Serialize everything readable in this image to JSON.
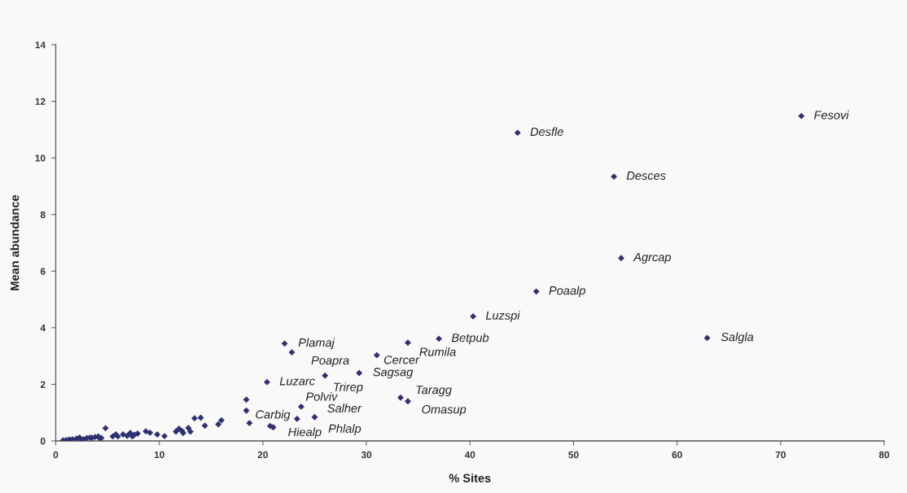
{
  "chart_data": {
    "type": "scatter",
    "xlabel": "% Sites",
    "ylabel": "Mean abundance",
    "color": "#2e3170",
    "marker": "diamond",
    "x": [
      0.7,
      1.0,
      1.3,
      1.6,
      2.0,
      2.3,
      2.4,
      2.7,
      3.0,
      3.3,
      3.5,
      3.8,
      4.1,
      4.2,
      4.4,
      4.8,
      5.5,
      5.8,
      6.0,
      6.5,
      6.9,
      7.2,
      7.4,
      7.6,
      7.9,
      8.7,
      9.1,
      9.8,
      10.5,
      11.6,
      11.9,
      12.2,
      12.3,
      12.8,
      13.0,
      13.4,
      14.0,
      14.4,
      15.7,
      16.0,
      18.4,
      18.4,
      18.7,
      20.4,
      20.7,
      21.0,
      22.1,
      22.8,
      23.3,
      23.7,
      25.0,
      26.0,
      29.3,
      31.0,
      33.3,
      34.0,
      34.0,
      37.0,
      40.3,
      44.6,
      46.4,
      53.9,
      54.6,
      62.9,
      72.0
    ],
    "values": [
      0.02,
      0.03,
      0.05,
      0.06,
      0.08,
      0.12,
      0.06,
      0.06,
      0.1,
      0.12,
      0.11,
      0.14,
      0.16,
      0.11,
      0.1,
      0.45,
      0.16,
      0.23,
      0.16,
      0.23,
      0.18,
      0.28,
      0.16,
      0.22,
      0.26,
      0.34,
      0.29,
      0.23,
      0.17,
      0.33,
      0.43,
      0.35,
      0.28,
      0.46,
      0.33,
      0.8,
      0.82,
      0.54,
      0.59,
      0.73,
      1.46,
      1.07,
      0.63,
      2.08,
      0.53,
      0.48,
      3.44,
      3.13,
      0.78,
      1.21,
      0.84,
      2.31,
      2.4,
      3.03,
      1.53,
      1.4,
      3.47,
      3.61,
      4.4,
      10.89,
      5.28,
      9.34,
      6.46,
      3.64,
      11.48
    ],
    "xlim": [
      0,
      80
    ],
    "ylim": [
      0,
      14
    ],
    "xticks": [
      0,
      10,
      20,
      30,
      40,
      50,
      60,
      70,
      80
    ],
    "yticks": [
      0,
      2,
      4,
      6,
      8,
      10,
      12,
      14
    ],
    "annotations": [
      {
        "text": "Luzarc",
        "x": 20.4,
        "y": 2.08
      },
      {
        "text": "Hiealp",
        "x": 21.0,
        "y": 0.48
      },
      {
        "text": "Plamaj",
        "x": 22.1,
        "y": 3.44
      },
      {
        "text": "Poapra",
        "x": 22.8,
        "y": 3.13
      },
      {
        "text": "Carbig",
        "x": 23.3,
        "y": 0.78
      },
      {
        "text": "Polviv",
        "x": 23.7,
        "y": 1.21
      },
      {
        "text": "Salher",
        "x": 25.0,
        "y": 0.84
      },
      {
        "text": "Phlalp",
        "x": 25.0,
        "y": 0.84
      },
      {
        "text": "Trirep",
        "x": 26.0,
        "y": 2.31
      },
      {
        "text": "Sagsag",
        "x": 29.3,
        "y": 2.4
      },
      {
        "text": "Cercer",
        "x": 31.0,
        "y": 3.03
      },
      {
        "text": "Taragg",
        "x": 33.3,
        "y": 1.53
      },
      {
        "text": "Omasup",
        "x": 34.0,
        "y": 1.4
      },
      {
        "text": "Rumila",
        "x": 34.0,
        "y": 3.47
      },
      {
        "text": "Betpub",
        "x": 37.0,
        "y": 3.61
      },
      {
        "text": "Luzspi",
        "x": 40.3,
        "y": 4.4
      },
      {
        "text": "Desfle",
        "x": 44.6,
        "y": 10.89
      },
      {
        "text": "Poaalp",
        "x": 46.4,
        "y": 5.28
      },
      {
        "text": "Desces",
        "x": 53.9,
        "y": 9.34
      },
      {
        "text": "Agrcap",
        "x": 54.6,
        "y": 6.46
      },
      {
        "text": "Salgla",
        "x": 62.9,
        "y": 3.64
      },
      {
        "text": "Fesovi",
        "x": 72.0,
        "y": 11.48
      }
    ]
  }
}
